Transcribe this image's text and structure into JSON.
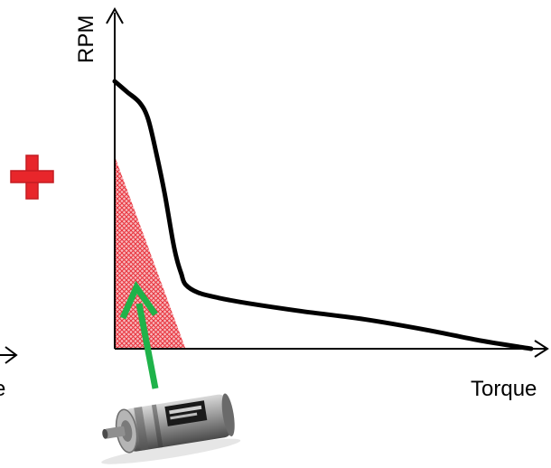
{
  "colors": {
    "curve": "#000000",
    "axis": "#000000",
    "region_fill": "#e8323c",
    "plus": "#e8262b",
    "arrow": "#1fb34a",
    "motor_body": "#8c8c8c"
  },
  "icons": {
    "plus": "plus-icon",
    "arrow": "arrow-up-icon",
    "motor": "gearmotor-image"
  },
  "chart_data": {
    "type": "line",
    "xlabel": "Torque",
    "ylabel": "RPM",
    "left_fragment": "e",
    "grid": false,
    "xlim": [
      0,
      100
    ],
    "ylim": [
      0,
      100
    ],
    "series": [
      {
        "x": [
          0,
          3,
          6,
          8,
          10,
          12,
          14,
          15,
          16,
          17,
          20,
          25,
          32,
          45,
          60,
          75,
          88,
          100
        ],
        "values": [
          100,
          96,
          92,
          86,
          73,
          58,
          40,
          33,
          28,
          24,
          21,
          19,
          17,
          14,
          11,
          7,
          3,
          0
        ]
      }
    ],
    "shaded_region": {
      "x": [
        0,
        0,
        17
      ],
      "y": [
        0,
        72,
        0
      ]
    }
  }
}
